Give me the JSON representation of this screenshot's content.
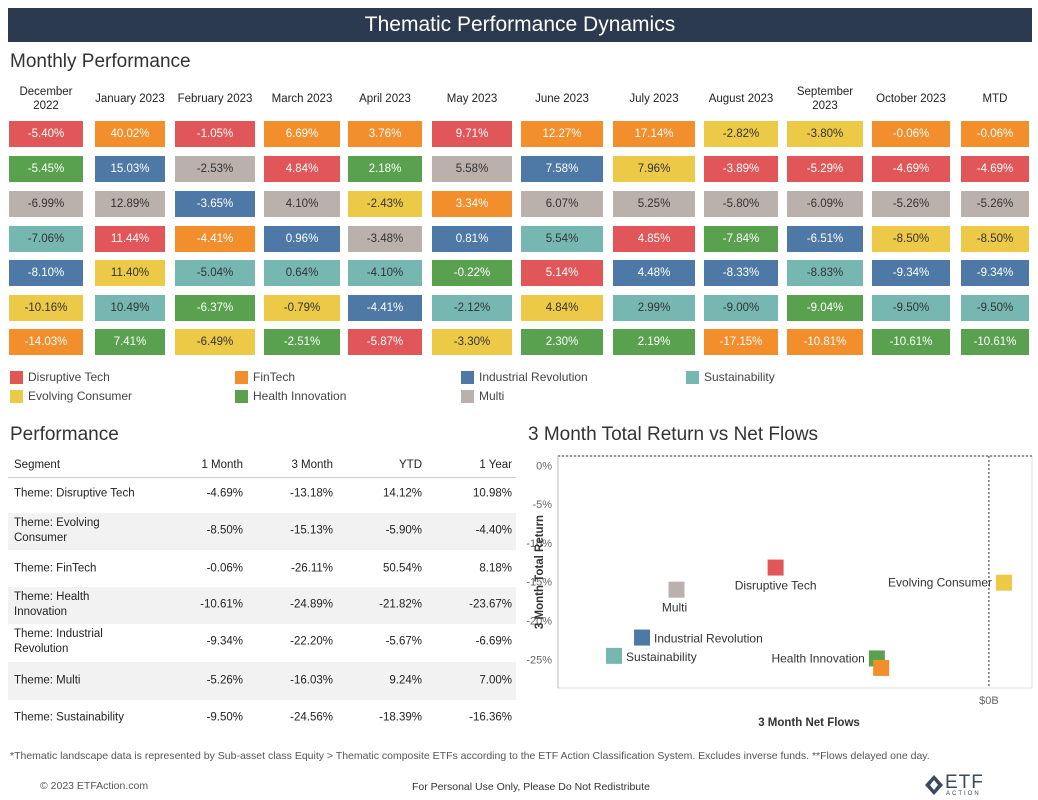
{
  "header": {
    "title": "Thematic Performance Dynamics"
  },
  "monthly": {
    "title": "Monthly Performance",
    "columns": [
      {
        "month": "December 2022",
        "cells": [
          {
            "label": "-5.40%",
            "theme": "Disruptive Tech"
          },
          {
            "label": "-5.45%",
            "theme": "Health Innovation"
          },
          {
            "label": "-6.99%",
            "theme": "Multi"
          },
          {
            "label": "-7.06%",
            "theme": "Sustainability"
          },
          {
            "label": "-8.10%",
            "theme": "Industrial Revolution"
          },
          {
            "label": "-10.16%",
            "theme": "Evolving Consumer"
          },
          {
            "label": "-14.03%",
            "theme": "FinTech"
          }
        ]
      },
      {
        "month": "January 2023",
        "cells": [
          {
            "label": "40.02%",
            "theme": "FinTech"
          },
          {
            "label": "15.03%",
            "theme": "Industrial Revolution"
          },
          {
            "label": "12.89%",
            "theme": "Multi"
          },
          {
            "label": "11.44%",
            "theme": "Disruptive Tech"
          },
          {
            "label": "11.40%",
            "theme": "Evolving Consumer"
          },
          {
            "label": "10.49%",
            "theme": "Sustainability"
          },
          {
            "label": "7.41%",
            "theme": "Health Innovation"
          }
        ]
      },
      {
        "month": "February 2023",
        "cells": [
          {
            "label": "-1.05%",
            "theme": "Disruptive Tech"
          },
          {
            "label": "-2.53%",
            "theme": "Multi"
          },
          {
            "label": "-3.65%",
            "theme": "Industrial Revolution"
          },
          {
            "label": "-4.41%",
            "theme": "FinTech"
          },
          {
            "label": "-5.04%",
            "theme": "Sustainability"
          },
          {
            "label": "-6.37%",
            "theme": "Health Innovation"
          },
          {
            "label": "-6.49%",
            "theme": "Evolving Consumer"
          }
        ]
      },
      {
        "month": "March 2023",
        "cells": [
          {
            "label": "6.69%",
            "theme": "FinTech"
          },
          {
            "label": "4.84%",
            "theme": "Disruptive Tech"
          },
          {
            "label": "4.10%",
            "theme": "Multi"
          },
          {
            "label": "0.96%",
            "theme": "Industrial Revolution"
          },
          {
            "label": "0.64%",
            "theme": "Sustainability"
          },
          {
            "label": "-0.79%",
            "theme": "Evolving Consumer"
          },
          {
            "label": "-2.51%",
            "theme": "Health Innovation"
          }
        ]
      },
      {
        "month": "April 2023",
        "cells": [
          {
            "label": "3.76%",
            "theme": "FinTech"
          },
          {
            "label": "2.18%",
            "theme": "Health Innovation"
          },
          {
            "label": "-2.43%",
            "theme": "Evolving Consumer"
          },
          {
            "label": "-3.48%",
            "theme": "Multi"
          },
          {
            "label": "-4.10%",
            "theme": "Sustainability"
          },
          {
            "label": "-4.41%",
            "theme": "Industrial Revolution"
          },
          {
            "label": "-5.87%",
            "theme": "Disruptive Tech"
          }
        ]
      },
      {
        "month": "May 2023",
        "cells": [
          {
            "label": "9.71%",
            "theme": "Disruptive Tech"
          },
          {
            "label": "5.58%",
            "theme": "Multi"
          },
          {
            "label": "3.34%",
            "theme": "FinTech"
          },
          {
            "label": "0.81%",
            "theme": "Industrial Revolution"
          },
          {
            "label": "-0.22%",
            "theme": "Health Innovation"
          },
          {
            "label": "-2.12%",
            "theme": "Sustainability"
          },
          {
            "label": "-3.30%",
            "theme": "Evolving Consumer"
          }
        ]
      },
      {
        "month": "June 2023",
        "cells": [
          {
            "label": "12.27%",
            "theme": "FinTech"
          },
          {
            "label": "7.58%",
            "theme": "Industrial Revolution"
          },
          {
            "label": "6.07%",
            "theme": "Multi"
          },
          {
            "label": "5.54%",
            "theme": "Sustainability"
          },
          {
            "label": "5.14%",
            "theme": "Disruptive Tech"
          },
          {
            "label": "4.84%",
            "theme": "Evolving Consumer"
          },
          {
            "label": "2.30%",
            "theme": "Health Innovation"
          }
        ]
      },
      {
        "month": "July 2023",
        "cells": [
          {
            "label": "17.14%",
            "theme": "FinTech"
          },
          {
            "label": "7.96%",
            "theme": "Evolving Consumer"
          },
          {
            "label": "5.25%",
            "theme": "Multi"
          },
          {
            "label": "4.85%",
            "theme": "Disruptive Tech"
          },
          {
            "label": "4.48%",
            "theme": "Industrial Revolution"
          },
          {
            "label": "2.99%",
            "theme": "Sustainability"
          },
          {
            "label": "2.19%",
            "theme": "Health Innovation"
          }
        ]
      },
      {
        "month": "August 2023",
        "cells": [
          {
            "label": "-2.82%",
            "theme": "Evolving Consumer"
          },
          {
            "label": "-3.89%",
            "theme": "Disruptive Tech"
          },
          {
            "label": "-5.80%",
            "theme": "Multi"
          },
          {
            "label": "-7.84%",
            "theme": "Health Innovation"
          },
          {
            "label": "-8.33%",
            "theme": "Industrial Revolution"
          },
          {
            "label": "-9.00%",
            "theme": "Sustainability"
          },
          {
            "label": "-17.15%",
            "theme": "FinTech"
          }
        ]
      },
      {
        "month": "September 2023",
        "cells": [
          {
            "label": "-3.80%",
            "theme": "Evolving Consumer"
          },
          {
            "label": "-5.29%",
            "theme": "Disruptive Tech"
          },
          {
            "label": "-6.09%",
            "theme": "Multi"
          },
          {
            "label": "-6.51%",
            "theme": "Industrial Revolution"
          },
          {
            "label": "-8.83%",
            "theme": "Sustainability"
          },
          {
            "label": "-9.04%",
            "theme": "Health Innovation"
          },
          {
            "label": "-10.81%",
            "theme": "FinTech"
          }
        ]
      },
      {
        "month": "October 2023",
        "cells": [
          {
            "label": "-0.06%",
            "theme": "FinTech"
          },
          {
            "label": "-4.69%",
            "theme": "Disruptive Tech"
          },
          {
            "label": "-5.26%",
            "theme": "Multi"
          },
          {
            "label": "-8.50%",
            "theme": "Evolving Consumer"
          },
          {
            "label": "-9.34%",
            "theme": "Industrial Revolution"
          },
          {
            "label": "-9.50%",
            "theme": "Sustainability"
          },
          {
            "label": "-10.61%",
            "theme": "Health Innovation"
          }
        ]
      },
      {
        "month": "MTD",
        "cells": [
          {
            "label": "-0.06%",
            "theme": "FinTech"
          },
          {
            "label": "-4.69%",
            "theme": "Disruptive Tech"
          },
          {
            "label": "-5.26%",
            "theme": "Multi"
          },
          {
            "label": "-8.50%",
            "theme": "Evolving Consumer"
          },
          {
            "label": "-9.34%",
            "theme": "Industrial Revolution"
          },
          {
            "label": "-9.50%",
            "theme": "Sustainability"
          },
          {
            "label": "-10.61%",
            "theme": "Health Innovation"
          }
        ]
      }
    ]
  },
  "legend": [
    {
      "name": "Disruptive Tech",
      "color": "#e15759"
    },
    {
      "name": "FinTech",
      "color": "#f28e2b"
    },
    {
      "name": "Industrial Revolution",
      "color": "#4e79a7"
    },
    {
      "name": "Sustainability",
      "color": "#76b7b2"
    },
    {
      "name": "Evolving Consumer",
      "color": "#edc948"
    },
    {
      "name": "Health Innovation",
      "color": "#59a14f"
    },
    {
      "name": "Multi",
      "color": "#bab0ac"
    }
  ],
  "performance": {
    "title": "Performance",
    "header": [
      "Segment",
      "1 Month",
      "3 Month",
      "YTD",
      "1 Year"
    ],
    "rows": [
      [
        "Theme: Disruptive Tech",
        "-4.69%",
        "-13.18%",
        "14.12%",
        "10.98%"
      ],
      [
        "Theme: Evolving Consumer",
        "-8.50%",
        "-15.13%",
        "-5.90%",
        "-4.40%"
      ],
      [
        "Theme: FinTech",
        "-0.06%",
        "-26.11%",
        "50.54%",
        "8.18%"
      ],
      [
        "Theme: Health Innovation",
        "-10.61%",
        "-24.89%",
        "-21.82%",
        "-23.67%"
      ],
      [
        "Theme: Industrial Revolution",
        "-9.34%",
        "-22.20%",
        "-5.67%",
        "-6.69%"
      ],
      [
        "Theme: Multi",
        "-5.26%",
        "-16.03%",
        "9.24%",
        "7.00%"
      ],
      [
        "Theme: Sustainability",
        "-9.50%",
        "-24.56%",
        "-18.39%",
        "-16.36%"
      ]
    ]
  },
  "chart_data": {
    "type": "scatter",
    "title": "3 Month Total Return vs Net Flows",
    "xlabel": "3 Month Net Flows",
    "ylabel": "3 Month Total Return",
    "xlim": [
      -2.0,
      0.2
    ],
    "ylim": [
      -28.7,
      1.2
    ],
    "xticks": [
      {
        "value": 0,
        "label": "$0B"
      }
    ],
    "yticks": [
      {
        "value": 0,
        "label": "0%"
      },
      {
        "value": -5,
        "label": "-5%"
      },
      {
        "value": -10,
        "label": "-10%"
      },
      {
        "value": -15,
        "label": "-15%"
      },
      {
        "value": -20,
        "label": "-20%"
      },
      {
        "value": -25,
        "label": "-25%"
      }
    ],
    "series": [
      {
        "name": "Disruptive Tech",
        "color": "#e15759",
        "x": [
          -0.99
        ],
        "values": [
          -13.18
        ]
      },
      {
        "name": "Evolving Consumer",
        "color": "#edc948",
        "x": [
          0.07
        ],
        "values": [
          -15.13
        ]
      },
      {
        "name": "Multi",
        "color": "#bab0ac",
        "x": [
          -1.45
        ],
        "values": [
          -16.03
        ]
      },
      {
        "name": "Industrial Revolution",
        "color": "#4e79a7",
        "x": [
          -1.61
        ],
        "values": [
          -22.2
        ]
      },
      {
        "name": "Sustainability",
        "color": "#76b7b2",
        "x": [
          -1.74
        ],
        "values": [
          -24.56
        ]
      },
      {
        "name": "Health Innovation",
        "color": "#59a14f",
        "x": [
          -0.52
        ],
        "values": [
          -24.89
        ]
      },
      {
        "name": "FinTech",
        "color": "#f28e2b",
        "x": [
          -0.5
        ],
        "values": [
          -26.11
        ]
      }
    ]
  },
  "footer": {
    "note": "*Thematic landscape data is represented by Sub-asset class Equity > Thematic composite ETFs according to the ETF Action Classification System. Excludes inverse funds. **Flows delayed one day.",
    "copyright": "© 2023 ETFAction.com",
    "disclaimer": "For Personal Use Only, Please Do Not Redistribute",
    "logo": "ETF",
    "logo_sub": "ACTION"
  }
}
